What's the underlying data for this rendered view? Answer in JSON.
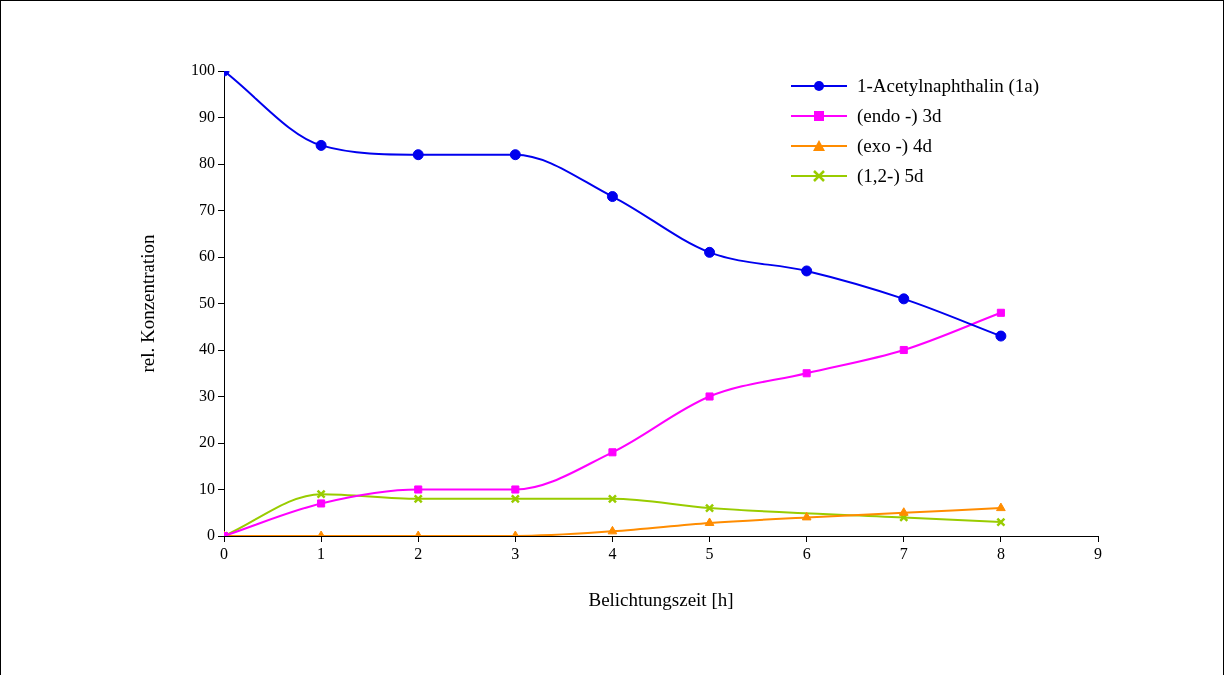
{
  "chart_data": {
    "type": "line",
    "xlabel": "Belichtungszeit [h]",
    "ylabel": "rel. Konzentration",
    "x": [
      0,
      1,
      2,
      3,
      4,
      5,
      6,
      7,
      8
    ],
    "xlim": [
      0,
      9
    ],
    "xticks": [
      0,
      1,
      2,
      3,
      4,
      5,
      6,
      7,
      8,
      9
    ],
    "ylim": [
      0,
      100
    ],
    "yticks": [
      0,
      10,
      20,
      30,
      40,
      50,
      60,
      70,
      80,
      90,
      100
    ],
    "grid": false,
    "legend": "top right",
    "series": [
      {
        "name": "1-Acetylnaphthalin (1a)",
        "color": "#0000ee",
        "marker": "circle",
        "values": [
          100,
          84,
          82,
          82,
          73,
          61,
          57,
          51,
          43
        ]
      },
      {
        "name": "(endo -) 3d",
        "color": "#ff00ff",
        "marker": "square",
        "values": [
          0,
          7,
          10,
          10,
          18,
          30,
          35,
          40,
          48
        ]
      },
      {
        "name": "(exo -) 4d",
        "color": "#ff8c00",
        "marker": "triangle",
        "values": [
          0,
          0,
          0,
          0,
          1,
          2.8,
          4,
          5,
          6
        ]
      },
      {
        "name": "(1,2-) 5d",
        "color": "#99cc00",
        "marker": "cross",
        "values": [
          0,
          9,
          8,
          8,
          8,
          6,
          null,
          4,
          3
        ]
      }
    ]
  }
}
